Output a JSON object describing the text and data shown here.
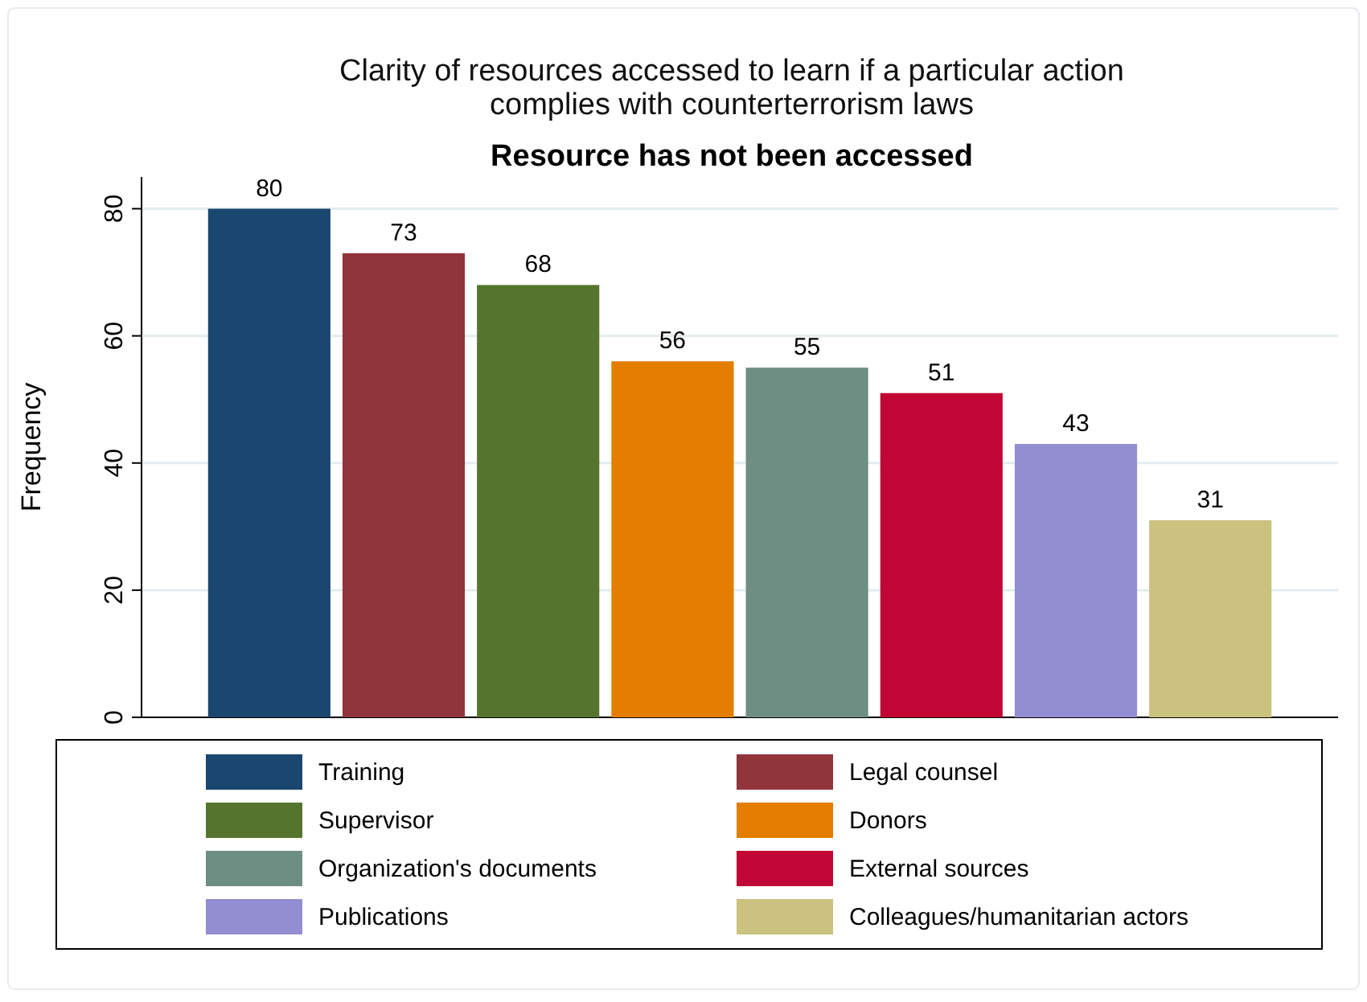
{
  "chart_data": {
    "type": "bar",
    "title": "Clarity of resources accessed to learn if a particular action complies with counterterrorism laws",
    "subtitle": "Resource has not been accessed",
    "ylabel": "Frequency",
    "categories": [
      null
    ],
    "series": [
      {
        "name": "Training",
        "color": "#1a476f",
        "values": [
          80
        ]
      },
      {
        "name": "Legal counsel",
        "color": "#90353b",
        "values": [
          73
        ]
      },
      {
        "name": "Supervisor",
        "color": "#55752f",
        "values": [
          68
        ]
      },
      {
        "name": "Donors",
        "color": "#e37e00",
        "values": [
          56
        ]
      },
      {
        "name": "Organization's documents",
        "color": "#6e8e84",
        "values": [
          55
        ]
      },
      {
        "name": "External sources",
        "color": "#c10534",
        "values": [
          51
        ]
      },
      {
        "name": "Publications",
        "color": "#938dd2",
        "values": [
          43
        ]
      },
      {
        "name": "Colleagues/humanitarian actors",
        "color": "#cac27e",
        "values": [
          31
        ]
      }
    ],
    "ylim": [
      0,
      85
    ],
    "yticks": [
      0,
      20,
      40,
      60,
      80
    ],
    "grid": "y",
    "data_labels": true,
    "legend": "bottom"
  }
}
